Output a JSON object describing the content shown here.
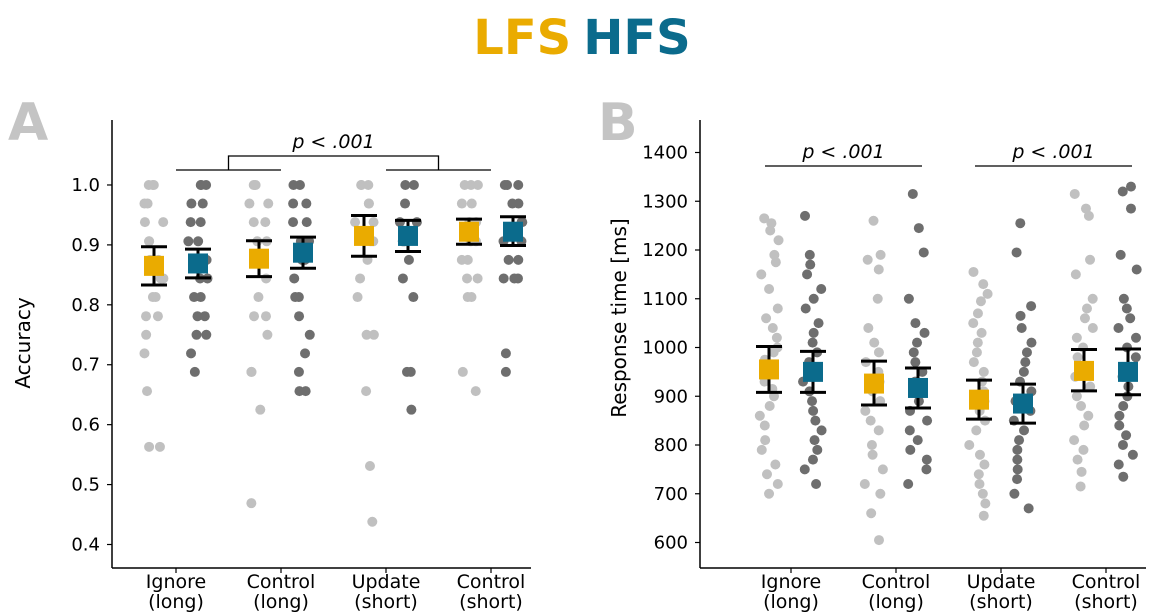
{
  "legend": {
    "items": [
      {
        "label": "LFS",
        "color": "#eaab00"
      },
      {
        "label": "HFS",
        "color": "#0b6b8c"
      }
    ]
  },
  "colors": {
    "lfs_points": "#c0c0c0",
    "hfs_points": "#6e6e6e",
    "lfs_mean": "#eaab00",
    "hfs_mean": "#0b6b8c",
    "panel_letter": "#c4c4c4"
  },
  "chart_data": [
    {
      "type": "scatter",
      "panel": "A",
      "xlabel": "",
      "ylabel": "Accuracy",
      "ylim": [
        0.38,
        1.11
      ],
      "yticks": [
        0.4,
        0.5,
        0.6,
        0.7,
        0.8,
        0.9,
        1.0
      ],
      "ytick_labels": [
        "0.4",
        "0.5",
        "0.6",
        "0.7",
        "0.8",
        "0.9",
        "1.0"
      ],
      "categories": [
        {
          "line1": "Ignore",
          "line2": "(long)"
        },
        {
          "line1": "Control",
          "line2": "(long)"
        },
        {
          "line1": "Update",
          "line2": "(short)"
        },
        {
          "line1": "Control",
          "line2": "(short)"
        }
      ],
      "series": [
        {
          "name": "LFS",
          "means": [
            0.865,
            0.877,
            0.915,
            0.922
          ],
          "ci_low": [
            0.833,
            0.847,
            0.881,
            0.901
          ],
          "ci_high": [
            0.897,
            0.907,
            0.949,
            0.943
          ],
          "points": [
            [
              1.0,
              1.0,
              1.0,
              0.969,
              0.969,
              0.938,
              0.938,
              0.906,
              0.906,
              0.875,
              0.875,
              0.844,
              0.844,
              0.813,
              0.813,
              0.781,
              0.781,
              0.75,
              0.719,
              0.656,
              0.563,
              0.563
            ],
            [
              1.0,
              1.0,
              0.969,
              0.969,
              0.938,
              0.938,
              0.906,
              0.906,
              0.875,
              0.875,
              0.844,
              0.813,
              0.781,
              0.781,
              0.75,
              0.688,
              0.688,
              0.625,
              0.469
            ],
            [
              1.0,
              1.0,
              1.0,
              0.969,
              0.969,
              0.938,
              0.938,
              0.906,
              0.906,
              0.875,
              0.844,
              0.813,
              0.75,
              0.75,
              0.656,
              0.531,
              0.438
            ],
            [
              1.0,
              1.0,
              1.0,
              0.969,
              0.969,
              0.938,
              0.938,
              0.906,
              0.906,
              0.875,
              0.875,
              0.844,
              0.844,
              0.813,
              0.813,
              0.688,
              0.656
            ]
          ]
        },
        {
          "name": "HFS",
          "means": [
            0.869,
            0.887,
            0.915,
            0.922
          ],
          "ci_low": [
            0.845,
            0.861,
            0.889,
            0.899
          ],
          "ci_high": [
            0.893,
            0.913,
            0.941,
            0.947
          ],
          "points": [
            [
              1.0,
              1.0,
              1.0,
              0.969,
              0.969,
              0.938,
              0.938,
              0.906,
              0.906,
              0.875,
              0.875,
              0.844,
              0.844,
              0.813,
              0.813,
              0.781,
              0.781,
              0.75,
              0.75,
              0.719,
              0.688
            ],
            [
              1.0,
              1.0,
              0.969,
              0.969,
              0.938,
              0.938,
              0.906,
              0.906,
              0.875,
              0.875,
              0.844,
              0.813,
              0.813,
              0.781,
              0.75,
              0.719,
              0.688,
              0.656,
              0.656
            ],
            [
              1.0,
              1.0,
              0.969,
              0.938,
              0.938,
              0.906,
              0.906,
              0.875,
              0.844,
              0.813,
              0.688,
              0.688,
              0.625
            ],
            [
              1.0,
              1.0,
              1.0,
              0.969,
              0.969,
              0.938,
              0.938,
              0.906,
              0.906,
              0.875,
              0.875,
              0.844,
              0.844,
              0.844,
              0.719,
              0.688
            ]
          ]
        }
      ],
      "annotations": [
        {
          "text": "p < .001",
          "type": "nested-bracket",
          "groups": [
            [
              0,
              1
            ],
            [
              2,
              3
            ]
          ]
        }
      ]
    },
    {
      "type": "scatter",
      "panel": "B",
      "xlabel": "",
      "ylabel": "Response time [ms]",
      "ylim": [
        565,
        1465
      ],
      "yticks": [
        600,
        700,
        800,
        900,
        1000,
        1100,
        1200,
        1300,
        1400
      ],
      "ytick_labels": [
        "600",
        "700",
        "800",
        "900",
        "1000",
        "1100",
        "1200",
        "1300",
        "1400"
      ],
      "categories": [
        {
          "line1": "Ignore",
          "line2": "(long)"
        },
        {
          "line1": "Control",
          "line2": "(long)"
        },
        {
          "line1": "Update",
          "line2": "(short)"
        },
        {
          "line1": "Control",
          "line2": "(short)"
        }
      ],
      "series": [
        {
          "name": "LFS",
          "means": [
            955,
            926,
            893,
            952
          ],
          "ci_low": [
            908,
            882,
            853,
            911
          ],
          "ci_high": [
            1002,
            972,
            933,
            996
          ],
          "points": [
            [
              1265,
              1255,
              1240,
              1220,
              1190,
              1175,
              1150,
              1120,
              1080,
              1060,
              1040,
              1020,
              1000,
              990,
              975,
              960,
              945,
              930,
              915,
              900,
              880,
              860,
              840,
              810,
              790,
              760,
              740,
              720,
              700
            ],
            [
              1260,
              1190,
              1180,
              1160,
              1100,
              1040,
              1010,
              990,
              970,
              950,
              930,
              910,
              890,
              870,
              850,
              830,
              800,
              780,
              750,
              720,
              700,
              660,
              605
            ],
            [
              1155,
              1130,
              1110,
              1095,
              1070,
              1050,
              1030,
              1010,
              990,
              970,
              950,
              930,
              910,
              890,
              870,
              850,
              830,
              800,
              780,
              760,
              740,
              720,
              700,
              680,
              655
            ],
            [
              1315,
              1285,
              1270,
              1180,
              1150,
              1100,
              1080,
              1060,
              1040,
              1020,
              1000,
              980,
              960,
              940,
              920,
              900,
              880,
              860,
              840,
              810,
              790,
              770,
              745,
              715
            ]
          ]
        },
        {
          "name": "HFS",
          "means": [
            950,
            917,
            885,
            950
          ],
          "ci_low": [
            908,
            876,
            845,
            903
          ],
          "ci_high": [
            992,
            958,
            925,
            997
          ],
          "points": [
            [
              1270,
              1190,
              1170,
              1150,
              1120,
              1100,
              1080,
              1050,
              1030,
              1010,
              990,
              970,
              950,
              930,
              910,
              890,
              870,
              850,
              830,
              810,
              790,
              770,
              750,
              720
            ],
            [
              1315,
              1245,
              1195,
              1100,
              1050,
              1030,
              1010,
              990,
              970,
              950,
              930,
              910,
              890,
              870,
              850,
              830,
              810,
              790,
              770,
              750,
              720
            ],
            [
              1255,
              1195,
              1085,
              1065,
              1040,
              1010,
              990,
              970,
              950,
              930,
              910,
              890,
              870,
              850,
              830,
              810,
              790,
              770,
              750,
              730,
              700,
              670
            ],
            [
              1330,
              1320,
              1285,
              1190,
              1160,
              1100,
              1080,
              1060,
              1040,
              1020,
              1000,
              980,
              960,
              940,
              920,
              900,
              880,
              860,
              840,
              820,
              800,
              780,
              760,
              735
            ]
          ]
        }
      ],
      "annotations": [
        {
          "text": "p < .001",
          "type": "bracket",
          "groups": [
            0,
            1
          ]
        },
        {
          "text": "p < .001",
          "type": "bracket",
          "groups": [
            2,
            3
          ]
        }
      ]
    }
  ]
}
